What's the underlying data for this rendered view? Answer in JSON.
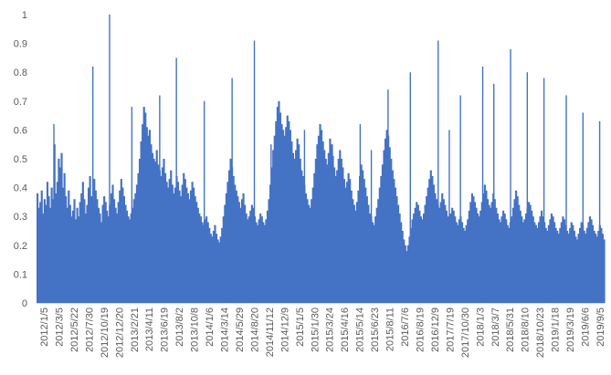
{
  "chart_data": {
    "type": "bar",
    "title": "",
    "xlabel": "",
    "ylabel": "",
    "ylim": [
      0,
      1
    ],
    "y_ticks": [
      "0",
      "0.1",
      "0.2",
      "0.3",
      "0.4",
      "0.5",
      "0.6",
      "0.7",
      "0.8",
      "0.9",
      "1"
    ],
    "x_tick_labels": [
      "2012/1/5",
      "2012/3/5",
      "2012/5/22",
      "2012/7/30",
      "2012/10/19",
      "2012/12/20",
      "2013/2/21",
      "2013/4/11",
      "2013/6/19",
      "2013/8/2",
      "2013/10/8",
      "2014/1/6",
      "2014/3/14",
      "2014/5/29",
      "2014/8/20",
      "2014/11/12",
      "2014/12/9",
      "2015/1/5",
      "2015/1/30",
      "2015/3/24",
      "2015/4/16",
      "2015/5/14",
      "2015/6/23",
      "2015/8/11",
      "2016/7/6",
      "2016/8/19",
      "2016/12/9",
      "2017/7/19",
      "2017/10/30",
      "2018/1/3",
      "2018/3/7",
      "2018/5/31",
      "2018/8/10",
      "2018/10/23",
      "2019/1/18",
      "2019/3/19",
      "2019/6/6",
      "2019/9/5"
    ],
    "series_color": "#4472C4",
    "grid": false,
    "legend": "none",
    "values": [
      0.38,
      0.33,
      0.35,
      0.39,
      0.31,
      0.36,
      0.34,
      0.42,
      0.37,
      0.33,
      0.4,
      0.36,
      0.55,
      0.38,
      0.42,
      0.5,
      0.47,
      0.52,
      0.4,
      0.45,
      0.37,
      0.33,
      0.39,
      0.34,
      0.3,
      0.32,
      0.36,
      0.29,
      0.33,
      0.3,
      0.35,
      0.38,
      0.42,
      0.36,
      0.31,
      0.34,
      0.4,
      0.44,
      0.37,
      0.35,
      0.43,
      0.39,
      0.36,
      0.33,
      0.31,
      0.28,
      0.34,
      0.37,
      0.35,
      0.32,
      0.3,
      0.34,
      0.38,
      0.41,
      0.36,
      0.33,
      0.31,
      0.35,
      0.39,
      0.43,
      0.4,
      0.37,
      0.34,
      0.32,
      0.3,
      0.29,
      0.31,
      0.33,
      0.36,
      0.38,
      0.41,
      0.45,
      0.5,
      0.56,
      0.62,
      0.68,
      0.66,
      0.61,
      0.58,
      0.6,
      0.55,
      0.52,
      0.5,
      0.49,
      0.53,
      0.48,
      0.46,
      0.44,
      0.47,
      0.5,
      0.45,
      0.42,
      0.4,
      0.43,
      0.46,
      0.41,
      0.38,
      0.4,
      0.44,
      0.42,
      0.39,
      0.37,
      0.41,
      0.45,
      0.43,
      0.4,
      0.38,
      0.36,
      0.39,
      0.42,
      0.4,
      0.37,
      0.35,
      0.33,
      0.31,
      0.3,
      0.28,
      0.27,
      0.29,
      0.3,
      0.28,
      0.26,
      0.24,
      0.23,
      0.25,
      0.27,
      0.24,
      0.22,
      0.21,
      0.23,
      0.26,
      0.3,
      0.34,
      0.38,
      0.42,
      0.46,
      0.5,
      0.47,
      0.44,
      0.41,
      0.39,
      0.37,
      0.35,
      0.33,
      0.36,
      0.38,
      0.34,
      0.31,
      0.29,
      0.3,
      0.32,
      0.34,
      0.33,
      0.3,
      0.28,
      0.27,
      0.29,
      0.31,
      0.3,
      0.28,
      0.27,
      0.29,
      0.32,
      0.36,
      0.41,
      0.47,
      0.53,
      0.58,
      0.63,
      0.68,
      0.7,
      0.66,
      0.62,
      0.6,
      0.58,
      0.61,
      0.65,
      0.63,
      0.6,
      0.56,
      0.52,
      0.5,
      0.53,
      0.57,
      0.55,
      0.5,
      0.46,
      0.44,
      0.41,
      0.38,
      0.36,
      0.34,
      0.33,
      0.36,
      0.4,
      0.45,
      0.5,
      0.55,
      0.58,
      0.62,
      0.6,
      0.56,
      0.53,
      0.5,
      0.48,
      0.52,
      0.57,
      0.55,
      0.51,
      0.47,
      0.44,
      0.46,
      0.5,
      0.53,
      0.5,
      0.47,
      0.43,
      0.4,
      0.42,
      0.45,
      0.43,
      0.39,
      0.36,
      0.34,
      0.32,
      0.35,
      0.39,
      0.44,
      0.48,
      0.46,
      0.43,
      0.4,
      0.37,
      0.34,
      0.31,
      0.3,
      0.28,
      0.27,
      0.3,
      0.33,
      0.36,
      0.4,
      0.44,
      0.48,
      0.53,
      0.57,
      0.6,
      0.58,
      0.54,
      0.5,
      0.46,
      0.43,
      0.4,
      0.37,
      0.34,
      0.31,
      0.28,
      0.25,
      0.22,
      0.2,
      0.18,
      0.2,
      0.23,
      0.26,
      0.29,
      0.31,
      0.33,
      0.35,
      0.34,
      0.32,
      0.3,
      0.29,
      0.31,
      0.34,
      0.37,
      0.4,
      0.43,
      0.46,
      0.44,
      0.41,
      0.38,
      0.36,
      0.34,
      0.33,
      0.35,
      0.38,
      0.36,
      0.34,
      0.32,
      0.3,
      0.29,
      0.31,
      0.33,
      0.32,
      0.3,
      0.28,
      0.27,
      0.29,
      0.3,
      0.28,
      0.26,
      0.25,
      0.27,
      0.29,
      0.32,
      0.35,
      0.38,
      0.37,
      0.35,
      0.33,
      0.31,
      0.3,
      0.32,
      0.35,
      0.38,
      0.41,
      0.39,
      0.36,
      0.34,
      0.33,
      0.35,
      0.38,
      0.36,
      0.33,
      0.31,
      0.29,
      0.28,
      0.3,
      0.32,
      0.31,
      0.29,
      0.27,
      0.26,
      0.28,
      0.3,
      0.33,
      0.36,
      0.39,
      0.37,
      0.34,
      0.32,
      0.3,
      0.28,
      0.29,
      0.31,
      0.33,
      0.35,
      0.34,
      0.32,
      0.3,
      0.28,
      0.27,
      0.26,
      0.28,
      0.3,
      0.32,
      0.3,
      0.28,
      0.26,
      0.25,
      0.27,
      0.29,
      0.31,
      0.3,
      0.28,
      0.26,
      0.25,
      0.24,
      0.26,
      0.28,
      0.3,
      0.29,
      0.27,
      0.25,
      0.24,
      0.26,
      0.28,
      0.27,
      0.25,
      0.23,
      0.22,
      0.24,
      0.26,
      0.28,
      0.27,
      0.25,
      0.24,
      0.26,
      0.28,
      0.3,
      0.29,
      0.27,
      0.25,
      0.24,
      0.23,
      0.25,
      0.27,
      0.26,
      0.24,
      0.22
    ],
    "peaks": [
      [
        0.06,
        0.62
      ],
      [
        0.2,
        0.82
      ],
      [
        0.26,
        1.0
      ],
      [
        0.34,
        0.68
      ],
      [
        0.44,
        0.72
      ],
      [
        0.5,
        0.85
      ],
      [
        0.6,
        0.7
      ],
      [
        0.7,
        0.78
      ],
      [
        0.78,
        0.91
      ],
      [
        0.84,
        0.55
      ],
      [
        0.9,
        0.58
      ],
      [
        0.96,
        0.6
      ],
      [
        1.06,
        0.55
      ],
      [
        1.16,
        0.62
      ],
      [
        1.2,
        0.53
      ],
      [
        1.26,
        0.74
      ],
      [
        1.34,
        0.8
      ],
      [
        1.44,
        0.91
      ],
      [
        1.48,
        0.6
      ],
      [
        1.52,
        0.72
      ],
      [
        1.6,
        0.82
      ],
      [
        1.64,
        0.76
      ],
      [
        1.7,
        0.88
      ],
      [
        1.76,
        0.8
      ],
      [
        1.82,
        0.78
      ],
      [
        1.9,
        0.72
      ],
      [
        1.96,
        0.66
      ],
      [
        2.02,
        0.63
      ]
    ]
  }
}
